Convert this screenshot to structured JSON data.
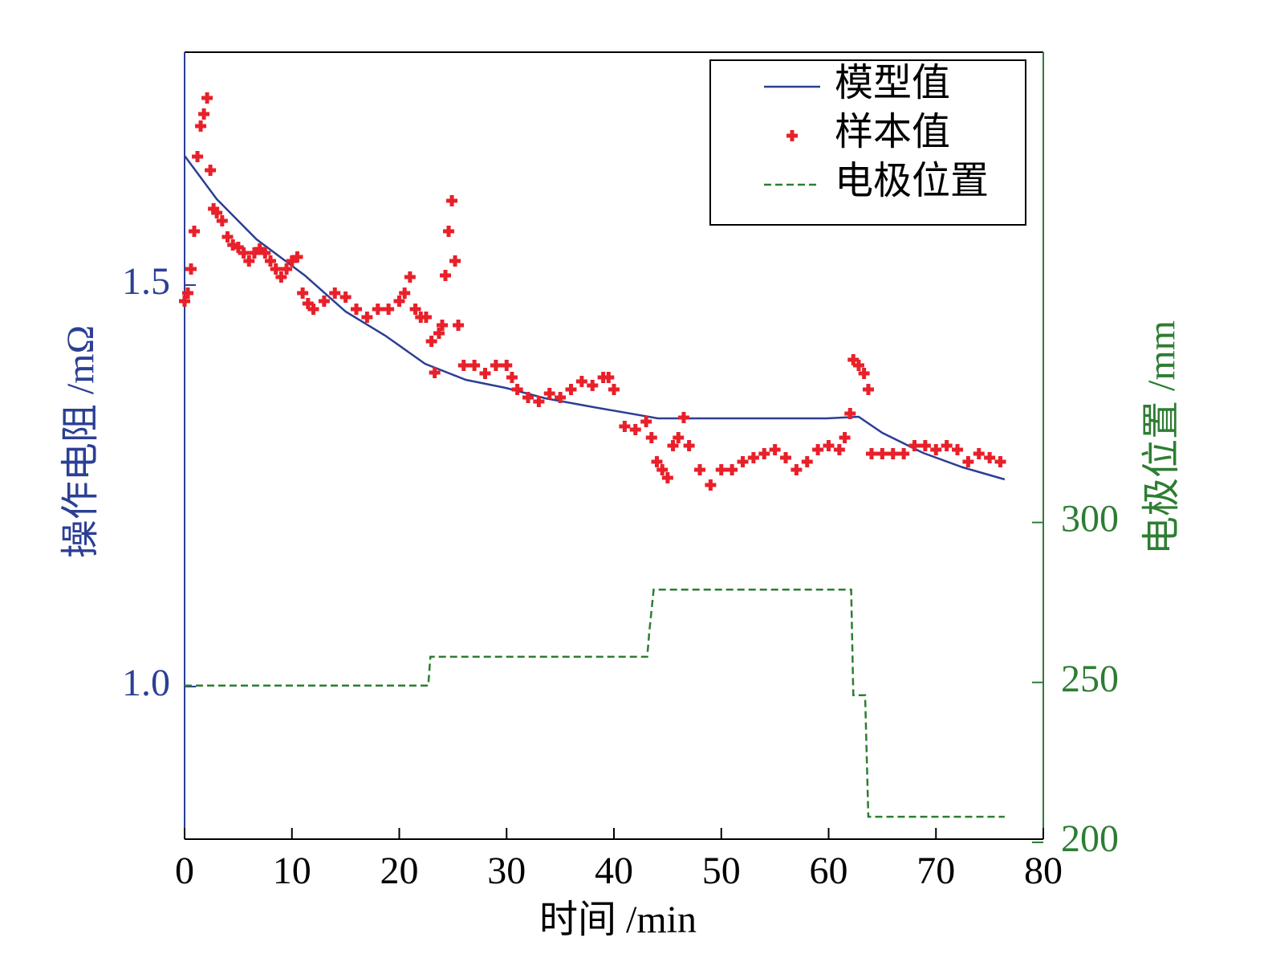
{
  "chart_data": {
    "type": "line",
    "xlabel": "时间 /min",
    "ylabel": "操作电阻 /mΩ",
    "y2label": "电极位置 /mm",
    "xlim": [
      0,
      80
    ],
    "xticks": [
      0,
      10,
      20,
      30,
      40,
      50,
      60,
      70,
      80
    ],
    "ylim": [
      0.81,
      1.79
    ],
    "yticks": [
      {
        "value": 1,
        "label": "1.0"
      },
      1.5
    ],
    "y2lim": [
      201,
      447
    ],
    "y2ticks": [
      200,
      250,
      300
    ],
    "legend": "upper right",
    "series": [
      {
        "name": "模型值",
        "type": "line",
        "color": "#2b3f94",
        "x": [
          0,
          3,
          6.7,
          11.2,
          15,
          18.7,
          22.4,
          26.2,
          29.9,
          33.6,
          38.1,
          44.1,
          59.8,
          62.8,
          65,
          68.8,
          72.5,
          76.4
        ],
        "values": [
          1.661,
          1.607,
          1.557,
          1.512,
          1.467,
          1.437,
          1.402,
          1.382,
          1.372,
          1.359,
          1.348,
          1.334,
          1.334,
          1.336,
          1.316,
          1.291,
          1.273,
          1.258
        ]
      },
      {
        "name": "样本值",
        "type": "scatter",
        "color": "#e8202a",
        "x": [
          0,
          0.3,
          0.6,
          0.9,
          1.2,
          1.5,
          1.8,
          2.1,
          2.4,
          2.7,
          3,
          3.5,
          4,
          4.5,
          5,
          5.5,
          6,
          6.5,
          7,
          7.5,
          8,
          8.5,
          9,
          9.5,
          10,
          10.5,
          11,
          11.5,
          12,
          13,
          14,
          15,
          16,
          17,
          18,
          19,
          20,
          20.5,
          21,
          21.5,
          22,
          22.5,
          23,
          23.3,
          23.7,
          24,
          24.3,
          24.6,
          24.9,
          25.2,
          25.5,
          26,
          27,
          28,
          29,
          30,
          30.5,
          31,
          32,
          33,
          34,
          35,
          36,
          37,
          38,
          39,
          39.5,
          40,
          41,
          42,
          43,
          43.5,
          44,
          44.5,
          45,
          45.5,
          46,
          46.5,
          47,
          48,
          49,
          50,
          51,
          52,
          53,
          54,
          55,
          56,
          57,
          58,
          59,
          60,
          61,
          61.5,
          62,
          62.3,
          62.8,
          63.3,
          63.7,
          64,
          65,
          66,
          67,
          68,
          69,
          70,
          71,
          72,
          73,
          74,
          75,
          76
        ],
        "values": [
          1.48,
          1.49,
          1.52,
          1.567,
          1.66,
          1.698,
          1.713,
          1.733,
          1.643,
          1.595,
          1.59,
          1.58,
          1.56,
          1.55,
          1.547,
          1.54,
          1.53,
          1.54,
          1.545,
          1.54,
          1.53,
          1.52,
          1.51,
          1.52,
          1.53,
          1.535,
          1.49,
          1.477,
          1.47,
          1.48,
          1.49,
          1.485,
          1.47,
          1.46,
          1.47,
          1.47,
          1.48,
          1.49,
          1.51,
          1.47,
          1.46,
          1.46,
          1.43,
          1.391,
          1.44,
          1.45,
          1.512,
          1.567,
          1.605,
          1.53,
          1.45,
          1.4,
          1.4,
          1.39,
          1.4,
          1.4,
          1.385,
          1.37,
          1.36,
          1.355,
          1.365,
          1.36,
          1.37,
          1.38,
          1.375,
          1.385,
          1.385,
          1.37,
          1.324,
          1.32,
          1.33,
          1.31,
          1.28,
          1.27,
          1.26,
          1.3,
          1.31,
          1.335,
          1.3,
          1.27,
          1.251,
          1.27,
          1.27,
          1.28,
          1.285,
          1.29,
          1.295,
          1.285,
          1.27,
          1.28,
          1.295,
          1.3,
          1.295,
          1.31,
          1.34,
          1.407,
          1.4,
          1.39,
          1.37,
          1.29,
          1.29,
          1.29,
          1.29,
          1.3,
          1.3,
          1.295,
          1.3,
          1.295,
          1.28,
          1.29,
          1.285,
          1.28
        ]
      },
      {
        "name": "电极位置",
        "type": "line",
        "dash": true,
        "axis": "y2",
        "color": "#2e7d32",
        "x": [
          0,
          22.7,
          22.9,
          43.1,
          43.3,
          43.7,
          62.1,
          62.3,
          63.4,
          63.7,
          76.4
        ],
        "values": [
          249,
          249,
          258,
          258,
          266,
          279,
          279,
          246,
          246,
          208,
          208
        ]
      }
    ]
  }
}
